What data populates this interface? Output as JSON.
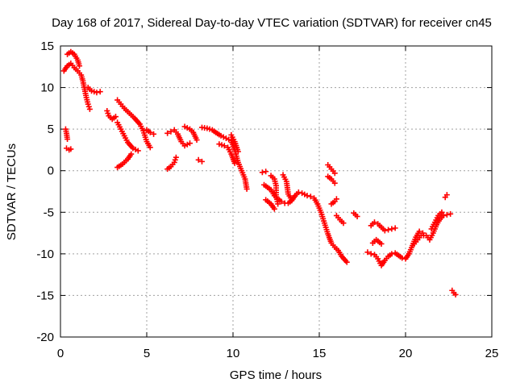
{
  "chart_data": {
    "type": "scatter",
    "title": "Day 168 of 2017, Sidereal Day-to-day VTEC variation (SDTVAR) for receiver cn45",
    "xlabel": "GPS time / hours",
    "ylabel": "SDTVAR / TECUs",
    "xlim": [
      0,
      25
    ],
    "ylim": [
      -20,
      15
    ],
    "xticks": [
      0,
      5,
      10,
      15,
      20,
      25
    ],
    "yticks": [
      15,
      10,
      5,
      0,
      -5,
      -10,
      -15,
      -20
    ],
    "xtick_labels": [
      "0",
      "5",
      "10",
      "15",
      "20",
      "25"
    ],
    "ytick_labels": [
      "15",
      "10",
      "5",
      "0",
      "-5",
      "-10",
      "-15",
      "-20"
    ],
    "grid": true,
    "marker": "plus",
    "color": "#ff0000",
    "segments": [
      [
        [
          0.2,
          12.0
        ],
        [
          0.4,
          12.6
        ],
        [
          0.6,
          12.9
        ],
        [
          0.8,
          12.4
        ],
        [
          1.0,
          12.0
        ],
        [
          1.2,
          11.5
        ],
        [
          1.3,
          10.8
        ],
        [
          1.4,
          9.8
        ],
        [
          1.5,
          8.8
        ],
        [
          1.6,
          8.0
        ],
        [
          1.7,
          7.4
        ]
      ],
      [
        [
          0.4,
          14.0
        ],
        [
          0.6,
          14.3
        ],
        [
          0.8,
          14.0
        ],
        [
          1.0,
          13.3
        ],
        [
          1.1,
          12.6
        ]
      ],
      [
        [
          0.3,
          5.0
        ],
        [
          0.35,
          4.5
        ],
        [
          0.4,
          3.8
        ]
      ],
      [
        [
          0.35,
          2.7
        ],
        [
          0.5,
          2.5
        ],
        [
          0.6,
          2.6
        ]
      ],
      [
        [
          1.6,
          10.0
        ],
        [
          1.8,
          9.6
        ],
        [
          2.1,
          9.4
        ],
        [
          2.3,
          9.5
        ]
      ],
      [
        [
          2.7,
          7.2
        ],
        [
          2.8,
          6.6
        ],
        [
          3.0,
          6.2
        ],
        [
          3.2,
          6.5
        ]
      ],
      [
        [
          3.3,
          5.8
        ],
        [
          3.5,
          5.0
        ],
        [
          3.7,
          4.2
        ],
        [
          3.9,
          3.4
        ],
        [
          4.2,
          2.7
        ],
        [
          4.5,
          2.4
        ]
      ],
      [
        [
          3.3,
          8.5
        ],
        [
          3.5,
          8.0
        ],
        [
          3.7,
          7.5
        ],
        [
          4.0,
          6.9
        ],
        [
          4.3,
          6.3
        ],
        [
          4.6,
          5.6
        ],
        [
          4.8,
          4.8
        ],
        [
          5.0,
          3.5
        ],
        [
          5.2,
          2.8
        ]
      ],
      [
        [
          3.3,
          0.4
        ],
        [
          3.6,
          0.8
        ],
        [
          3.9,
          1.4
        ],
        [
          4.1,
          2.0
        ]
      ],
      [
        [
          5.0,
          4.9
        ],
        [
          5.2,
          4.6
        ],
        [
          5.4,
          4.4
        ]
      ],
      [
        [
          6.2,
          4.5
        ],
        [
          6.4,
          4.7
        ],
        [
          6.6,
          4.9
        ],
        [
          6.8,
          4.4
        ],
        [
          7.0,
          3.5
        ],
        [
          7.2,
          3.0
        ],
        [
          7.5,
          3.3
        ]
      ],
      [
        [
          6.2,
          0.2
        ],
        [
          6.4,
          0.5
        ],
        [
          6.6,
          1.0
        ],
        [
          6.7,
          1.6
        ]
      ],
      [
        [
          7.2,
          5.3
        ],
        [
          7.5,
          5.0
        ],
        [
          7.7,
          4.6
        ],
        [
          7.9,
          3.7
        ]
      ],
      [
        [
          8.2,
          5.2
        ],
        [
          8.5,
          5.1
        ],
        [
          8.8,
          4.9
        ],
        [
          9.0,
          4.6
        ],
        [
          9.3,
          4.2
        ],
        [
          9.6,
          3.9
        ],
        [
          9.9,
          3.6
        ],
        [
          10.1,
          2.5
        ],
        [
          10.3,
          1.0
        ],
        [
          10.5,
          0.0
        ],
        [
          10.7,
          -1.0
        ],
        [
          10.8,
          -2.2
        ]
      ],
      [
        [
          9.2,
          3.2
        ],
        [
          9.5,
          3.0
        ],
        [
          9.7,
          2.8
        ],
        [
          9.9,
          2.0
        ],
        [
          10.1,
          0.9
        ]
      ],
      [
        [
          9.9,
          4.3
        ],
        [
          10.1,
          3.5
        ],
        [
          10.3,
          2.3
        ]
      ],
      [
        [
          8.0,
          1.3
        ],
        [
          8.2,
          1.1
        ]
      ],
      [
        [
          11.7,
          -0.2
        ],
        [
          11.9,
          -0.1
        ]
      ],
      [
        [
          11.8,
          -1.7
        ],
        [
          12.0,
          -2.0
        ],
        [
          12.2,
          -2.3
        ],
        [
          12.4,
          -3.0
        ],
        [
          12.6,
          -3.4
        ],
        [
          12.8,
          -3.7
        ],
        [
          13.0,
          -3.9
        ],
        [
          13.2,
          -3.9
        ],
        [
          13.4,
          -3.6
        ],
        [
          13.6,
          -3.0
        ],
        [
          13.8,
          -2.6
        ]
      ],
      [
        [
          12.2,
          -0.6
        ],
        [
          12.4,
          -1.0
        ],
        [
          12.5,
          -1.8
        ],
        [
          12.5,
          -2.9
        ],
        [
          12.6,
          -4.0
        ]
      ],
      [
        [
          12.9,
          -0.5
        ],
        [
          13.1,
          -1.3
        ],
        [
          13.2,
          -2.8
        ],
        [
          13.4,
          -3.5
        ]
      ],
      [
        [
          11.9,
          -3.5
        ],
        [
          12.2,
          -4.0
        ],
        [
          12.4,
          -4.6
        ]
      ],
      [
        [
          14.0,
          -2.7
        ],
        [
          14.3,
          -3.0
        ],
        [
          14.5,
          -3.1
        ],
        [
          14.7,
          -3.3
        ],
        [
          14.9,
          -4.0
        ],
        [
          15.1,
          -5.0
        ],
        [
          15.3,
          -6.3
        ],
        [
          15.5,
          -7.6
        ],
        [
          15.7,
          -8.7
        ],
        [
          15.9,
          -9.2
        ],
        [
          16.1,
          -9.6
        ],
        [
          16.3,
          -10.3
        ],
        [
          16.6,
          -11.0
        ]
      ],
      [
        [
          15.5,
          -0.7
        ],
        [
          15.7,
          -1.0
        ],
        [
          15.9,
          -1.5
        ]
      ],
      [
        [
          15.5,
          0.7
        ],
        [
          15.7,
          0.2
        ],
        [
          15.9,
          -0.3
        ]
      ],
      [
        [
          15.7,
          -4.0
        ],
        [
          15.9,
          -3.7
        ],
        [
          16.0,
          -3.4
        ]
      ],
      [
        [
          16.0,
          -5.4
        ],
        [
          16.2,
          -5.9
        ],
        [
          16.4,
          -6.3
        ]
      ],
      [
        [
          17.0,
          -5.1
        ],
        [
          17.2,
          -5.5
        ]
      ],
      [
        [
          17.8,
          -9.8
        ],
        [
          18.0,
          -10.0
        ],
        [
          18.2,
          -10.1
        ],
        [
          18.4,
          -10.6
        ],
        [
          18.6,
          -11.4
        ],
        [
          18.8,
          -10.8
        ],
        [
          19.0,
          -10.3
        ],
        [
          19.2,
          -10.0
        ],
        [
          19.4,
          -9.9
        ],
        [
          19.6,
          -10.2
        ],
        [
          19.8,
          -10.5
        ],
        [
          20.0,
          -10.6
        ],
        [
          20.2,
          -10.0
        ],
        [
          20.4,
          -9.0
        ],
        [
          20.6,
          -8.0
        ],
        [
          20.8,
          -7.3
        ],
        [
          21.0,
          -7.5
        ]
      ],
      [
        [
          18.0,
          -6.6
        ],
        [
          18.2,
          -6.2
        ],
        [
          18.4,
          -6.4
        ],
        [
          18.6,
          -6.8
        ],
        [
          18.8,
          -7.2
        ],
        [
          19.0,
          -7.1
        ],
        [
          19.2,
          -7.0
        ],
        [
          19.4,
          -6.9
        ]
      ],
      [
        [
          18.1,
          -8.7
        ],
        [
          18.3,
          -8.3
        ],
        [
          18.6,
          -8.8
        ]
      ],
      [
        [
          20.5,
          -8.8
        ],
        [
          20.7,
          -8.3
        ],
        [
          20.9,
          -7.8
        ],
        [
          21.2,
          -7.8
        ],
        [
          21.4,
          -8.3
        ],
        [
          21.6,
          -7.5
        ],
        [
          21.8,
          -6.5
        ],
        [
          22.0,
          -5.8
        ],
        [
          22.2,
          -5.4
        ],
        [
          22.4,
          -5.3
        ],
        [
          22.6,
          -5.2
        ]
      ],
      [
        [
          21.5,
          -7.0
        ],
        [
          21.7,
          -6.2
        ],
        [
          21.9,
          -5.4
        ],
        [
          22.1,
          -5.0
        ]
      ],
      [
        [
          22.3,
          -3.2
        ],
        [
          22.4,
          -2.9
        ]
      ],
      [
        [
          22.7,
          -14.4
        ],
        [
          22.8,
          -14.7
        ],
        [
          22.9,
          -14.9
        ]
      ]
    ]
  }
}
